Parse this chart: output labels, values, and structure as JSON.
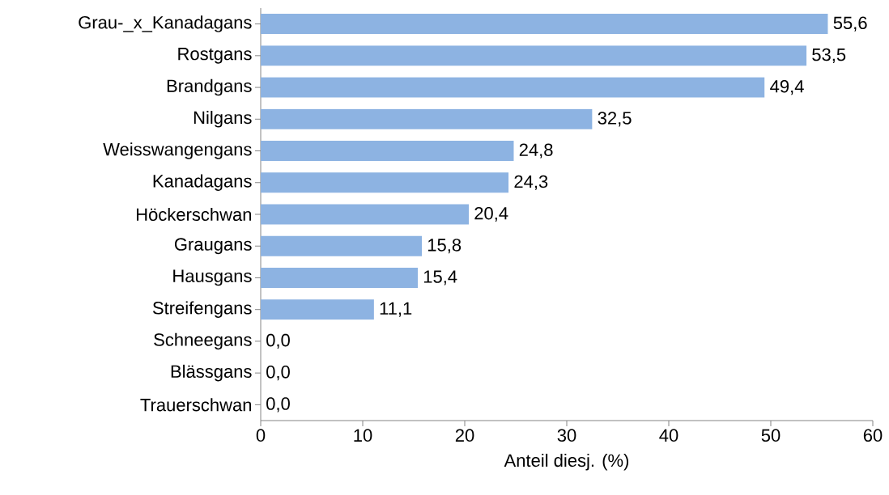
{
  "chart_data": {
    "type": "bar",
    "orientation": "horizontal",
    "xlabel": "Anteil diesj. (%)",
    "categories": [
      "Grau-_x_Kanadagans",
      "Rostgans",
      "Brandgans",
      "Nilgans",
      "Weisswangengans",
      "Kanadagans",
      "Höckerschwan",
      "Graugans",
      "Hausgans",
      "Streifengans",
      "Schneegans",
      "Blässgans",
      "Trauerschwan"
    ],
    "values": [
      55.6,
      53.5,
      49.4,
      32.5,
      24.8,
      24.3,
      20.4,
      15.8,
      15.4,
      11.1,
      0,
      0,
      0
    ],
    "value_labels": [
      "55,6",
      "53,5",
      "49,4",
      "32,5",
      "24,8",
      "24,3",
      "20,4",
      "15,8",
      "15,4",
      "11,1",
      "0,0",
      "0,0",
      "0,0"
    ],
    "color": "#8db3e2",
    "xlim": [
      0,
      60
    ],
    "xticks": [
      0,
      10,
      20,
      30,
      40,
      50,
      60
    ],
    "grid": false
  }
}
